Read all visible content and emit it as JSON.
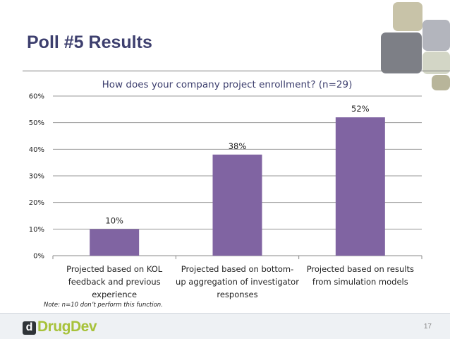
{
  "slide": {
    "title": "Poll #5 Results",
    "note": "Note: n=10 don’t perform this function.",
    "page_number": "17"
  },
  "logo": {
    "mark": "d",
    "text": "DrugDev"
  },
  "colors": {
    "title": "#3d3f6e",
    "bar": "#8064a2",
    "logo_green": "#a7c23a",
    "tiles": [
      "#c8c3a8",
      "#b3b5bd",
      "#7d7f86",
      "#d3d6c6",
      "#b8b59a"
    ]
  },
  "chart_data": {
    "type": "bar",
    "title": "How does your company project enrollment? (n=29)",
    "categories": [
      [
        "Projected based on KOL",
        "feedback and previous",
        "experience"
      ],
      [
        "Projected based on bottom-",
        "up aggregation of investigator",
        "responses"
      ],
      [
        "Projected based on results",
        "from simulation models"
      ]
    ],
    "values": [
      10,
      38,
      52
    ],
    "data_labels": [
      "10%",
      "38%",
      "52%"
    ],
    "ylim": [
      0,
      60
    ],
    "yticks": [
      0,
      10,
      20,
      30,
      40,
      50,
      60
    ],
    "ytick_labels": [
      "0%",
      "10%",
      "20%",
      "30%",
      "40%",
      "50%",
      "60%"
    ],
    "grid": true,
    "xlabel": "",
    "ylabel": ""
  }
}
